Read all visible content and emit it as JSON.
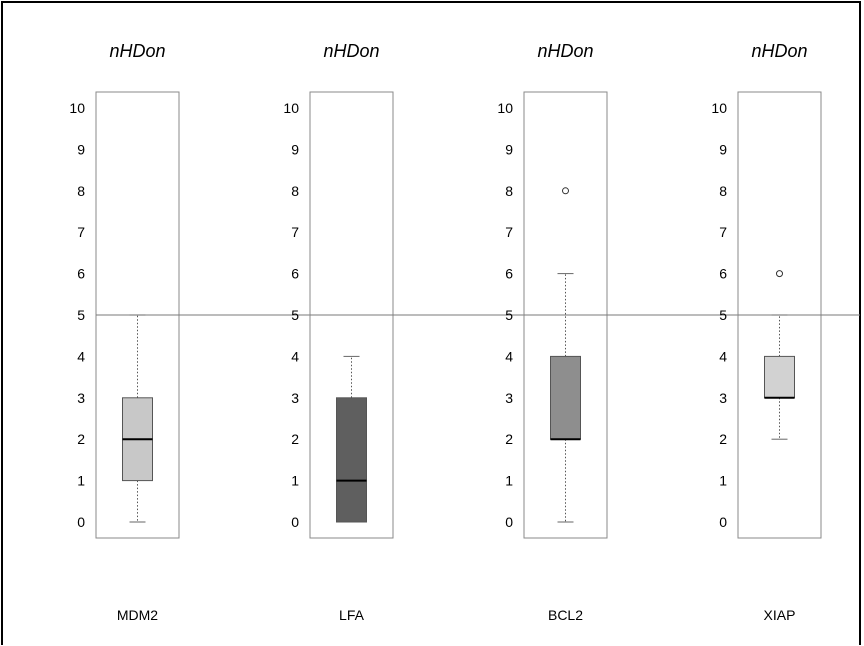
{
  "chart_data": [
    {
      "type": "box",
      "title": "nHDon",
      "category": "MDM2",
      "ylim": [
        0,
        10
      ],
      "yticks": [
        "0",
        "1",
        "2",
        "3",
        "4",
        "5",
        "6",
        "7",
        "8",
        "9",
        "10"
      ],
      "reference_line": 5,
      "box": {
        "whisker_low": 0,
        "q1": 1,
        "median": 2,
        "q3": 3,
        "whisker_high": 5,
        "outliers": []
      },
      "fill": "#c8c8c8"
    },
    {
      "type": "box",
      "title": "nHDon",
      "category": "LFA",
      "ylim": [
        0,
        10
      ],
      "yticks": [
        "0",
        "1",
        "2",
        "3",
        "4",
        "5",
        "6",
        "7",
        "8",
        "9",
        "10"
      ],
      "reference_line": 5,
      "box": {
        "whisker_low": 0,
        "q1": 0,
        "median": 1,
        "q3": 3,
        "whisker_high": 4,
        "outliers": []
      },
      "fill": "#5f5f5f"
    },
    {
      "type": "box",
      "title": "nHDon",
      "category": "BCL2",
      "ylim": [
        0,
        10
      ],
      "yticks": [
        "0",
        "1",
        "2",
        "3",
        "4",
        "5",
        "6",
        "7",
        "8",
        "9",
        "10"
      ],
      "reference_line": 5,
      "box": {
        "whisker_low": 0,
        "q1": 2,
        "median": 2,
        "q3": 4,
        "whisker_high": 6,
        "outliers": [
          8
        ]
      },
      "fill": "#8e8e8e"
    },
    {
      "type": "box",
      "title": "nHDon",
      "category": "XIAP",
      "ylim": [
        0,
        10
      ],
      "yticks": [
        "0",
        "1",
        "2",
        "3",
        "4",
        "5",
        "6",
        "7",
        "8",
        "9",
        "10"
      ],
      "reference_line": 5,
      "box": {
        "whisker_low": 2,
        "q1": 3,
        "median": 3,
        "q3": 4,
        "whisker_high": 5,
        "outliers": [
          6
        ]
      },
      "fill": "#d2d2d2"
    }
  ]
}
